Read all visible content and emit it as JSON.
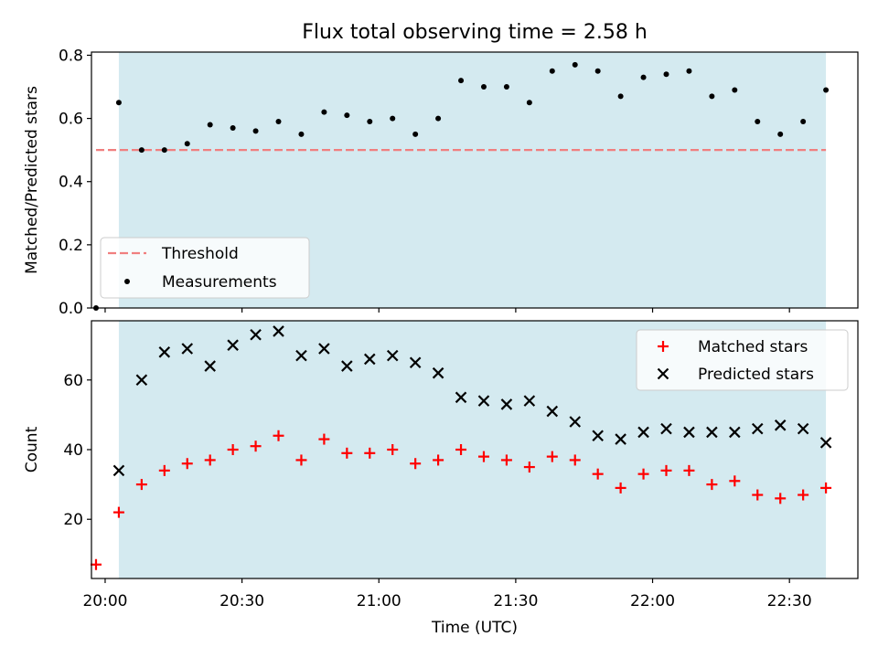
{
  "title": "Flux total observing time = 2.58 h",
  "chart_data": [
    {
      "type": "scatter",
      "panel": "top",
      "title": "Flux total observing time = 2.58 h",
      "ylabel": "Matched/Predicted stars",
      "xlabel": "",
      "ylim": [
        0,
        0.81
      ],
      "yticks": [
        0.0,
        0.2,
        0.4,
        0.6,
        0.8
      ],
      "ytick_labels": [
        "0.0",
        "0.2",
        "0.4",
        "0.6",
        "0.8"
      ],
      "xlim": [
        "19:57",
        "22:45"
      ],
      "shaded_region": {
        "from": "20:03",
        "to": "22:38",
        "color": "#d4eaf0"
      },
      "legend": {
        "placement": "lower left",
        "items": [
          "Threshold",
          "Measurements"
        ]
      },
      "threshold": {
        "name": "Threshold",
        "value": 0.5,
        "from": "19:58",
        "to": "22:38",
        "color": "#f07f7f",
        "style": "dashed"
      },
      "series": [
        {
          "name": "Measurements",
          "color": "#000000",
          "marker": "dot",
          "x": [
            "19:58",
            "20:03",
            "20:08",
            "20:13",
            "20:18",
            "20:23",
            "20:28",
            "20:33",
            "20:38",
            "20:43",
            "20:48",
            "20:53",
            "20:58",
            "21:03",
            "21:08",
            "21:13",
            "21:18",
            "21:23",
            "21:28",
            "21:33",
            "21:38",
            "21:43",
            "21:48",
            "21:53",
            "21:58",
            "22:03",
            "22:08",
            "22:13",
            "22:18",
            "22:23",
            "22:28",
            "22:33",
            "22:38"
          ],
          "y": [
            0.0,
            0.65,
            0.5,
            0.5,
            0.52,
            0.58,
            0.57,
            0.56,
            0.59,
            0.55,
            0.62,
            0.61,
            0.59,
            0.6,
            0.55,
            0.6,
            0.72,
            0.7,
            0.7,
            0.65,
            0.75,
            0.77,
            0.75,
            0.67,
            0.73,
            0.74,
            0.75,
            0.67,
            0.69,
            0.59,
            0.55,
            0.59,
            0.69
          ]
        }
      ]
    },
    {
      "type": "scatter",
      "panel": "bottom",
      "title": "",
      "ylabel": "Count",
      "xlabel": "Time (UTC)",
      "ylim": [
        3,
        77
      ],
      "yticks": [
        20,
        40,
        60
      ],
      "ytick_labels": [
        "20",
        "40",
        "60"
      ],
      "xlim": [
        "19:57",
        "22:45"
      ],
      "xticks": [
        "20:00",
        "20:30",
        "21:00",
        "21:30",
        "22:00",
        "22:30"
      ],
      "xtick_labels": [
        "20:00",
        "20:30",
        "21:00",
        "21:30",
        "22:00",
        "22:30"
      ],
      "shaded_region": {
        "from": "20:03",
        "to": "22:38",
        "color": "#d4eaf0"
      },
      "legend": {
        "placement": "upper right",
        "items": [
          "Matched stars",
          "Predicted stars"
        ]
      },
      "series": [
        {
          "name": "Matched stars",
          "color": "#ff0000",
          "marker": "plus",
          "x": [
            "19:58",
            "20:03",
            "20:08",
            "20:13",
            "20:18",
            "20:23",
            "20:28",
            "20:33",
            "20:38",
            "20:43",
            "20:48",
            "20:53",
            "20:58",
            "21:03",
            "21:08",
            "21:13",
            "21:18",
            "21:23",
            "21:28",
            "21:33",
            "21:38",
            "21:43",
            "21:48",
            "21:53",
            "21:58",
            "22:03",
            "22:08",
            "22:13",
            "22:18",
            "22:23",
            "22:28",
            "22:33",
            "22:38"
          ],
          "y": [
            7,
            22,
            30,
            34,
            36,
            37,
            40,
            41,
            44,
            37,
            43,
            39,
            39,
            40,
            36,
            37,
            40,
            38,
            37,
            35,
            38,
            37,
            33,
            29,
            33,
            34,
            34,
            30,
            31,
            27,
            26,
            27,
            29
          ]
        },
        {
          "name": "Predicted stars",
          "color": "#000000",
          "marker": "x",
          "x": [
            "20:03",
            "20:08",
            "20:13",
            "20:18",
            "20:23",
            "20:28",
            "20:33",
            "20:38",
            "20:43",
            "20:48",
            "20:53",
            "20:58",
            "21:03",
            "21:08",
            "21:13",
            "21:18",
            "21:23",
            "21:28",
            "21:33",
            "21:38",
            "21:43",
            "21:48",
            "21:53",
            "21:58",
            "22:03",
            "22:08",
            "22:13",
            "22:18",
            "22:23",
            "22:28",
            "22:33",
            "22:38"
          ],
          "y": [
            34,
            60,
            68,
            69,
            64,
            70,
            73,
            74,
            67,
            69,
            64,
            66,
            67,
            65,
            62,
            55,
            54,
            53,
            54,
            51,
            48,
            44,
            43,
            45,
            46,
            45,
            45,
            45,
            46,
            47,
            46,
            42
          ]
        }
      ]
    }
  ]
}
